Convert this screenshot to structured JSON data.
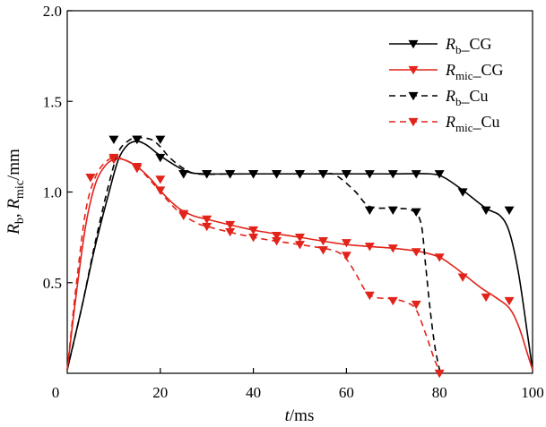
{
  "chart_data": {
    "type": "line",
    "title": "",
    "xlabel": {
      "var": "t",
      "unit": "/ms"
    },
    "ylabel": {
      "var1": "R",
      "sub1": "b",
      "sep": ", ",
      "var2": "R",
      "sub2": "mic",
      "unit": "/mm"
    },
    "xlim": [
      0,
      100
    ],
    "ylim": [
      0,
      2.0
    ],
    "xticks": [
      0,
      20,
      40,
      60,
      80,
      100
    ],
    "yticks": [
      0.5,
      1.0,
      1.5,
      2.0
    ],
    "ytick_labels": [
      "0.5",
      "1.0",
      "1.5",
      "2.0"
    ],
    "xtick_labels": [
      "0",
      "20",
      "40",
      "60",
      "80",
      "100"
    ],
    "origin_label": "0",
    "legend_position": "top-right",
    "series": [
      {
        "name": "R_b_CG",
        "legend": {
          "var": "R",
          "sub": "b",
          "suffix": "_CG"
        },
        "color": "#000000",
        "dash": "solid",
        "curve": [
          [
            0,
            0.02
          ],
          [
            3,
            0.35
          ],
          [
            6,
            0.7
          ],
          [
            9,
            1.0
          ],
          [
            11,
            1.18
          ],
          [
            13,
            1.26
          ],
          [
            15,
            1.28
          ],
          [
            17,
            1.26
          ],
          [
            20,
            1.2
          ],
          [
            23,
            1.15
          ],
          [
            26,
            1.11
          ],
          [
            30,
            1.1
          ],
          [
            40,
            1.1
          ],
          [
            50,
            1.1
          ],
          [
            60,
            1.1
          ],
          [
            70,
            1.1
          ],
          [
            78,
            1.1
          ],
          [
            81,
            1.08
          ],
          [
            85,
            1.01
          ],
          [
            90,
            0.91
          ],
          [
            93,
            0.87
          ],
          [
            95,
            0.78
          ],
          [
            97,
            0.55
          ],
          [
            99,
            0.2
          ],
          [
            100,
            0.02
          ]
        ],
        "markers": [
          [
            15,
            1.29
          ],
          [
            20,
            1.19
          ],
          [
            25,
            1.1
          ],
          [
            30,
            1.1
          ],
          [
            35,
            1.1
          ],
          [
            40,
            1.1
          ],
          [
            45,
            1.1
          ],
          [
            50,
            1.1
          ],
          [
            55,
            1.1
          ],
          [
            60,
            1.1
          ],
          [
            65,
            1.1
          ],
          [
            70,
            1.1
          ],
          [
            75,
            1.1
          ],
          [
            80,
            1.1
          ],
          [
            85,
            1.0
          ],
          [
            90,
            0.9
          ],
          [
            95,
            0.9
          ]
        ]
      },
      {
        "name": "R_mic_CG",
        "legend": {
          "var": "R",
          "sub": "mic",
          "suffix": "_CG"
        },
        "color": "#e2231a",
        "dash": "solid",
        "curve": [
          [
            0,
            0.02
          ],
          [
            2,
            0.45
          ],
          [
            4,
            0.82
          ],
          [
            6,
            1.04
          ],
          [
            8,
            1.14
          ],
          [
            10,
            1.18
          ],
          [
            12,
            1.18
          ],
          [
            15,
            1.14
          ],
          [
            18,
            1.07
          ],
          [
            21,
            0.98
          ],
          [
            24,
            0.91
          ],
          [
            27,
            0.87
          ],
          [
            30,
            0.85
          ],
          [
            40,
            0.79
          ],
          [
            50,
            0.75
          ],
          [
            60,
            0.71
          ],
          [
            70,
            0.69
          ],
          [
            76,
            0.67
          ],
          [
            80,
            0.64
          ],
          [
            83,
            0.59
          ],
          [
            86,
            0.53
          ],
          [
            89,
            0.47
          ],
          [
            92,
            0.42
          ],
          [
            95,
            0.36
          ],
          [
            97,
            0.26
          ],
          [
            99,
            0.1
          ],
          [
            100,
            0.02
          ]
        ],
        "markers": [
          [
            5,
            1.08
          ],
          [
            10,
            1.18
          ],
          [
            15,
            1.14
          ],
          [
            20,
            1.01
          ],
          [
            25,
            0.88
          ],
          [
            30,
            0.85
          ],
          [
            35,
            0.82
          ],
          [
            40,
            0.79
          ],
          [
            45,
            0.76
          ],
          [
            50,
            0.75
          ],
          [
            55,
            0.73
          ],
          [
            60,
            0.72
          ],
          [
            65,
            0.7
          ],
          [
            70,
            0.69
          ],
          [
            75,
            0.67
          ],
          [
            80,
            0.64
          ],
          [
            85,
            0.53
          ],
          [
            90,
            0.42
          ],
          [
            95,
            0.4
          ]
        ]
      },
      {
        "name": "R_b_Cu",
        "legend": {
          "var": "R",
          "sub": "b",
          "suffix": "_Cu"
        },
        "color": "#000000",
        "dash": "dashed",
        "curve": [
          [
            0,
            0.02
          ],
          [
            3,
            0.35
          ],
          [
            6,
            0.72
          ],
          [
            9,
            1.05
          ],
          [
            11,
            1.22
          ],
          [
            13,
            1.28
          ],
          [
            15,
            1.3
          ],
          [
            18,
            1.29
          ],
          [
            20,
            1.25
          ],
          [
            22,
            1.19
          ],
          [
            25,
            1.13
          ],
          [
            28,
            1.1
          ],
          [
            35,
            1.1
          ],
          [
            45,
            1.1
          ],
          [
            55,
            1.1
          ],
          [
            57,
            1.1
          ],
          [
            59,
            1.07
          ],
          [
            62,
            1.0
          ],
          [
            65,
            0.92
          ],
          [
            70,
            0.91
          ],
          [
            74,
            0.9
          ],
          [
            76,
            0.83
          ],
          [
            77,
            0.6
          ],
          [
            78,
            0.35
          ],
          [
            79,
            0.15
          ],
          [
            80,
            0.02
          ]
        ],
        "markers": [
          [
            10,
            1.29
          ],
          [
            15,
            1.29
          ],
          [
            20,
            1.29
          ],
          [
            25,
            1.1
          ],
          [
            30,
            1.1
          ],
          [
            35,
            1.1
          ],
          [
            40,
            1.1
          ],
          [
            45,
            1.1
          ],
          [
            50,
            1.1
          ],
          [
            55,
            1.1
          ],
          [
            60,
            1.1
          ],
          [
            65,
            0.9
          ],
          [
            70,
            0.9
          ],
          [
            75,
            0.89
          ]
        ]
      },
      {
        "name": "R_mic_Cu",
        "legend": {
          "var": "R",
          "sub": "mic",
          "suffix": "_Cu"
        },
        "color": "#e2231a",
        "dash": "dashed",
        "curve": [
          [
            0,
            0.02
          ],
          [
            2,
            0.5
          ],
          [
            4,
            0.9
          ],
          [
            6,
            1.08
          ],
          [
            8,
            1.16
          ],
          [
            10,
            1.19
          ],
          [
            12,
            1.18
          ],
          [
            15,
            1.14
          ],
          [
            18,
            1.06
          ],
          [
            21,
            0.97
          ],
          [
            24,
            0.89
          ],
          [
            27,
            0.84
          ],
          [
            30,
            0.81
          ],
          [
            40,
            0.75
          ],
          [
            50,
            0.71
          ],
          [
            55,
            0.69
          ],
          [
            58,
            0.67
          ],
          [
            60,
            0.63
          ],
          [
            62,
            0.55
          ],
          [
            64,
            0.46
          ],
          [
            66,
            0.42
          ],
          [
            70,
            0.41
          ],
          [
            73,
            0.39
          ],
          [
            75,
            0.35
          ],
          [
            77,
            0.22
          ],
          [
            79,
            0.07
          ],
          [
            80,
            0.02
          ]
        ],
        "markers": [
          [
            5,
            1.08
          ],
          [
            10,
            1.19
          ],
          [
            15,
            1.13
          ],
          [
            20,
            1.07
          ],
          [
            25,
            0.87
          ],
          [
            30,
            0.81
          ],
          [
            35,
            0.78
          ],
          [
            40,
            0.75
          ],
          [
            45,
            0.73
          ],
          [
            50,
            0.71
          ],
          [
            55,
            0.68
          ],
          [
            60,
            0.65
          ],
          [
            65,
            0.43
          ],
          [
            70,
            0.4
          ],
          [
            75,
            0.38
          ],
          [
            80,
            0.0
          ]
        ]
      }
    ]
  }
}
